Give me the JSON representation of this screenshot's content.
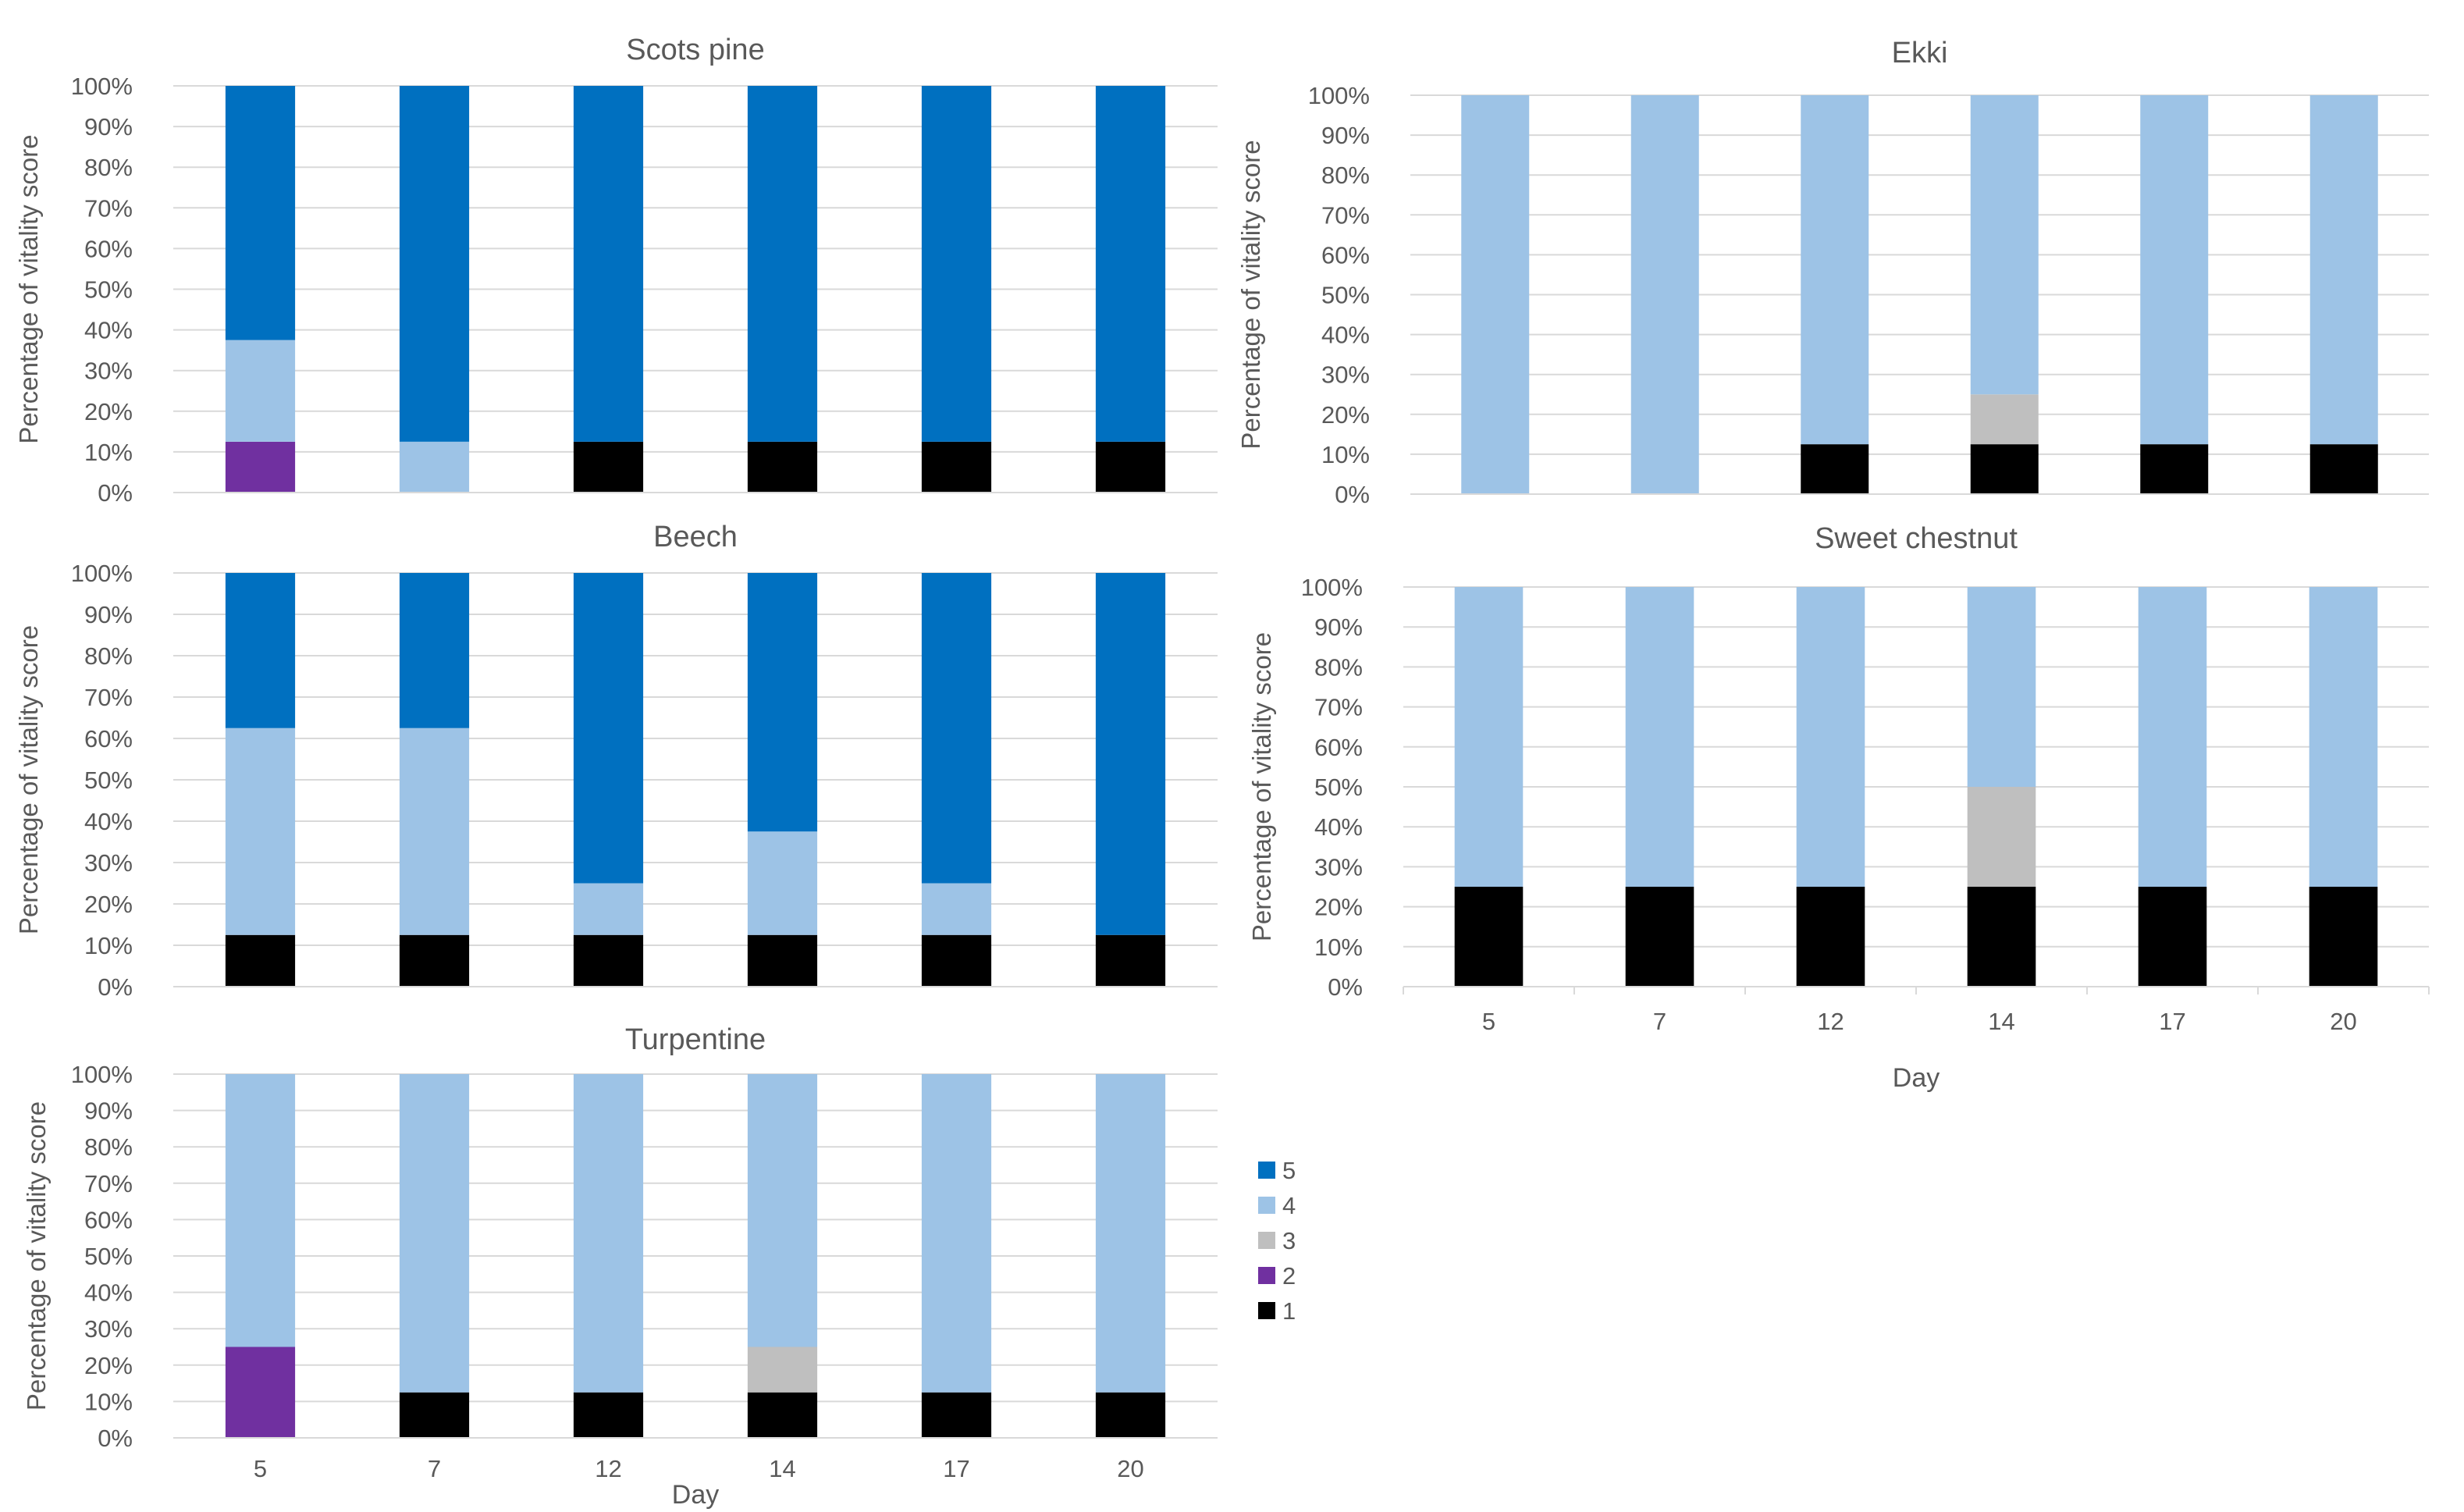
{
  "figure": {
    "legend_title": "",
    "legend_items": [
      {
        "label": "5",
        "color": "#0070c0"
      },
      {
        "label": "4",
        "color": "#9dc3e6"
      },
      {
        "label": "3",
        "color": "#bfbfbf"
      },
      {
        "label": "2",
        "color": "#7030a0"
      },
      {
        "label": "1",
        "color": "#000000"
      }
    ]
  },
  "chart_data": [
    {
      "type": "bar",
      "stacked": true,
      "title": "Scots pine",
      "xlabel": "",
      "ylabel": "Percentage of vitality score",
      "categories": [
        "5",
        "7",
        "12",
        "14",
        "17",
        "20"
      ],
      "yticks": [
        "0%",
        "10%",
        "20%",
        "30%",
        "40%",
        "50%",
        "60%",
        "70%",
        "80%",
        "90%",
        "100%"
      ],
      "ylim": [
        0,
        100
      ],
      "grid": true,
      "series": [
        {
          "name": "1",
          "color": "#000000",
          "values": [
            0,
            0,
            12.5,
            12.5,
            12.5,
            12.5
          ]
        },
        {
          "name": "2",
          "color": "#7030a0",
          "values": [
            12.5,
            0,
            0,
            0,
            0,
            0
          ]
        },
        {
          "name": "3",
          "color": "#bfbfbf",
          "values": [
            0,
            0,
            0,
            0,
            0,
            0
          ]
        },
        {
          "name": "4",
          "color": "#9dc3e6",
          "values": [
            25,
            12.5,
            0,
            0,
            0,
            0
          ]
        },
        {
          "name": "5",
          "color": "#0070c0",
          "values": [
            62.5,
            87.5,
            87.5,
            87.5,
            87.5,
            87.5
          ]
        }
      ]
    },
    {
      "type": "bar",
      "stacked": true,
      "title": "Ekki",
      "xlabel": "",
      "ylabel": "Percentage of vitality score",
      "categories": [
        "5",
        "7",
        "12",
        "14",
        "17",
        "20"
      ],
      "yticks": [
        "0%",
        "10%",
        "20%",
        "30%",
        "40%",
        "50%",
        "60%",
        "70%",
        "80%",
        "90%",
        "100%"
      ],
      "ylim": [
        0,
        100
      ],
      "grid": true,
      "series": [
        {
          "name": "1",
          "color": "#000000",
          "values": [
            0,
            0,
            12.5,
            12.5,
            12.5,
            12.5
          ]
        },
        {
          "name": "2",
          "color": "#7030a0",
          "values": [
            0,
            0,
            0,
            0,
            0,
            0
          ]
        },
        {
          "name": "3",
          "color": "#bfbfbf",
          "values": [
            0,
            0,
            0,
            12.5,
            0,
            0
          ]
        },
        {
          "name": "4",
          "color": "#9dc3e6",
          "values": [
            100,
            100,
            87.5,
            75,
            87.5,
            87.5
          ]
        },
        {
          "name": "5",
          "color": "#0070c0",
          "values": [
            0,
            0,
            0,
            0,
            0,
            0
          ]
        }
      ]
    },
    {
      "type": "bar",
      "stacked": true,
      "title": "Beech",
      "xlabel": "",
      "ylabel": "Percentage of vitality score",
      "categories": [
        "5",
        "7",
        "12",
        "14",
        "17",
        "20"
      ],
      "yticks": [
        "0%",
        "10%",
        "20%",
        "30%",
        "40%",
        "50%",
        "60%",
        "70%",
        "80%",
        "90%",
        "100%"
      ],
      "ylim": [
        0,
        100
      ],
      "grid": true,
      "series": [
        {
          "name": "1",
          "color": "#000000",
          "values": [
            12.5,
            12.5,
            12.5,
            12.5,
            12.5,
            12.5
          ]
        },
        {
          "name": "2",
          "color": "#7030a0",
          "values": [
            0,
            0,
            0,
            0,
            0,
            0
          ]
        },
        {
          "name": "3",
          "color": "#bfbfbf",
          "values": [
            0,
            0,
            0,
            0,
            0,
            0
          ]
        },
        {
          "name": "4",
          "color": "#9dc3e6",
          "values": [
            50,
            50,
            12.5,
            25,
            12.5,
            0
          ]
        },
        {
          "name": "5",
          "color": "#0070c0",
          "values": [
            37.5,
            37.5,
            75,
            62.5,
            75,
            87.5
          ]
        }
      ]
    },
    {
      "type": "bar",
      "stacked": true,
      "title": "Sweet chestnut",
      "xlabel": "Day",
      "ylabel": "Percentage of vitality score",
      "categories": [
        "5",
        "7",
        "12",
        "14",
        "17",
        "20"
      ],
      "yticks": [
        "0%",
        "10%",
        "20%",
        "30%",
        "40%",
        "50%",
        "60%",
        "70%",
        "80%",
        "90%",
        "100%"
      ],
      "ylim": [
        0,
        100
      ],
      "grid": true,
      "series": [
        {
          "name": "1",
          "color": "#000000",
          "values": [
            25,
            25,
            25,
            25,
            25,
            25
          ]
        },
        {
          "name": "2",
          "color": "#7030a0",
          "values": [
            0,
            0,
            0,
            0,
            0,
            0
          ]
        },
        {
          "name": "3",
          "color": "#bfbfbf",
          "values": [
            0,
            0,
            0,
            25,
            0,
            0
          ]
        },
        {
          "name": "4",
          "color": "#9dc3e6",
          "values": [
            75,
            75,
            75,
            50,
            75,
            75
          ]
        },
        {
          "name": "5",
          "color": "#0070c0",
          "values": [
            0,
            0,
            0,
            0,
            0,
            0
          ]
        }
      ]
    },
    {
      "type": "bar",
      "stacked": true,
      "title": "Turpentine",
      "xlabel": "Day",
      "ylabel": "Percentage of vitality score",
      "categories": [
        "5",
        "7",
        "12",
        "14",
        "17",
        "20"
      ],
      "yticks": [
        "0%",
        "10%",
        "20%",
        "30%",
        "40%",
        "50%",
        "60%",
        "70%",
        "80%",
        "90%",
        "100%"
      ],
      "ylim": [
        0,
        100
      ],
      "grid": true,
      "series": [
        {
          "name": "1",
          "color": "#000000",
          "values": [
            0,
            12.5,
            12.5,
            12.5,
            12.5,
            12.5
          ]
        },
        {
          "name": "2",
          "color": "#7030a0",
          "values": [
            25,
            0,
            0,
            0,
            0,
            0
          ]
        },
        {
          "name": "3",
          "color": "#bfbfbf",
          "values": [
            0,
            0,
            0,
            12.5,
            0,
            0
          ]
        },
        {
          "name": "4",
          "color": "#9dc3e6",
          "values": [
            75,
            87.5,
            87.5,
            75,
            87.5,
            87.5
          ]
        },
        {
          "name": "5",
          "color": "#0070c0",
          "values": [
            0,
            0,
            0,
            0,
            0,
            0
          ]
        }
      ]
    }
  ]
}
